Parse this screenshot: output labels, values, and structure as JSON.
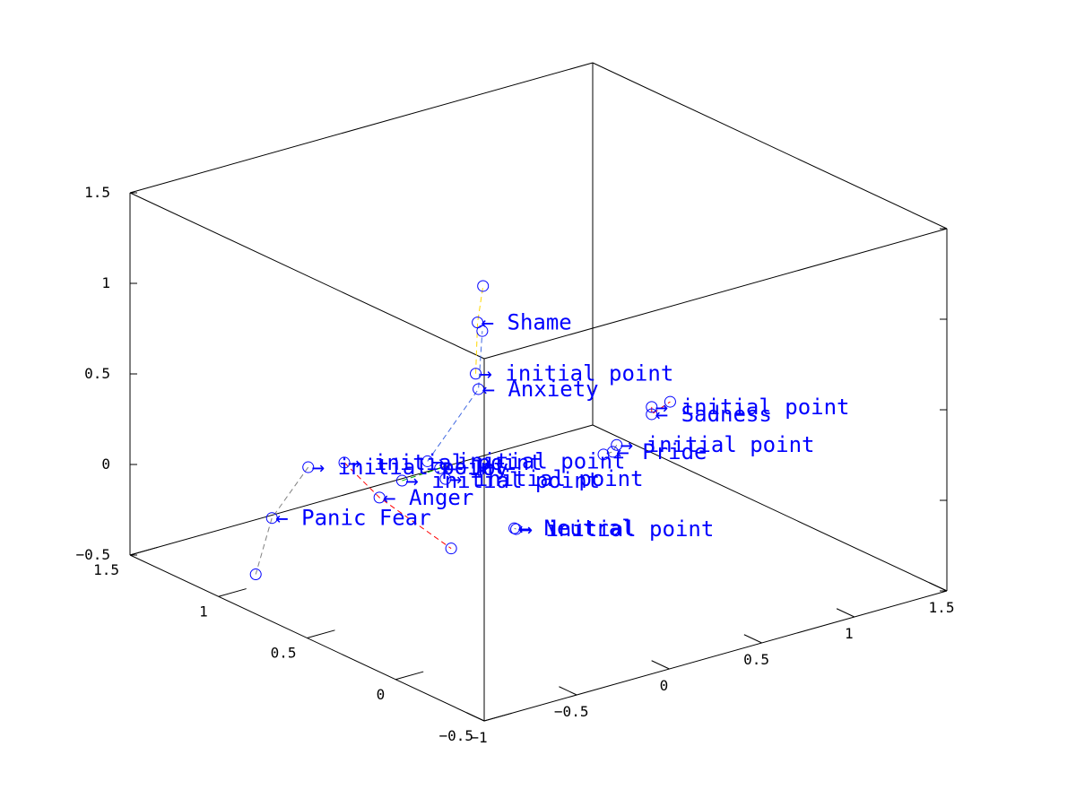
{
  "chart_data": {
    "type": "line3d",
    "xlim": [
      -0.5,
      1.5
    ],
    "ylim": [
      -1,
      1.5
    ],
    "zlim": [
      -0.5,
      1.5
    ],
    "x_ticks": [
      {
        "value": -0.5,
        "label": "−0.5"
      },
      {
        "value": 0,
        "label": "0"
      },
      {
        "value": 0.5,
        "label": "0.5"
      },
      {
        "value": 1,
        "label": "1"
      },
      {
        "value": 1.5,
        "label": "1.5"
      }
    ],
    "y_ticks": [
      {
        "value": -1,
        "label": "−1"
      },
      {
        "value": -0.5,
        "label": "−0.5"
      },
      {
        "value": 0,
        "label": "0"
      },
      {
        "value": 0.5,
        "label": "0.5"
      },
      {
        "value": 1,
        "label": "1"
      },
      {
        "value": 1.5,
        "label": "1.5"
      }
    ],
    "z_ticks": [
      {
        "value": -0.5,
        "label": "−0.5"
      },
      {
        "value": 0,
        "label": "0"
      },
      {
        "value": 0.5,
        "label": "0.5"
      },
      {
        "value": 1,
        "label": "1"
      },
      {
        "value": 1.5,
        "label": "1.5"
      }
    ],
    "series": [
      {
        "color": "#ffd700",
        "points": [
          [
            0.06,
            -0.51,
            1.02
          ],
          [
            0.06,
            -0.5,
            1.3
          ],
          [
            0.05,
            -0.48,
            1.5
          ]
        ],
        "labels": [
          {
            "point": 0,
            "text": "→ initial point"
          },
          {
            "point": 1,
            "text": "← Shame"
          }
        ]
      },
      {
        "color": "#4169e1",
        "points": [
          [
            0.28,
            -0.56,
            0.45
          ],
          [
            0.17,
            -0.39,
            0.85
          ],
          [
            0.19,
            -0.35,
            1.15
          ]
        ],
        "labels": [
          {
            "point": 0,
            "text": "→ initial point"
          },
          {
            "point": 1,
            "text": "← Anxiety"
          }
        ]
      },
      {
        "color": "#ff0000",
        "points": [
          [
            0.31,
            0.68,
            0.38
          ],
          [
            0.31,
            0.68,
            0.34
          ],
          [
            0.31,
            0.78,
            0.38
          ]
        ],
        "labels": [
          {
            "point": 0,
            "text": "→ initial point"
          },
          {
            "point": 1,
            "text": "← Sadness"
          }
        ]
      },
      {
        "color": "#808080",
        "points": [
          [
            0.33,
            0.51,
            0.21
          ],
          [
            0.3,
            0.46,
            0.2
          ],
          [
            0.3,
            0.41,
            0.2
          ]
        ],
        "labels": [
          {
            "point": 0,
            "text": "→ initial point"
          },
          {
            "point": 1,
            "text": "← Pride"
          }
        ]
      },
      {
        "color": "#ff0000",
        "points": [
          [
            0.76,
            -0.55,
            0.22
          ],
          [
            0.75,
            -0.37,
            -0.02
          ],
          [
            0.46,
            -0.26,
            -0.2
          ]
        ],
        "labels": [
          {
            "point": 0,
            "text": "→ initial point"
          },
          {
            "point": 1,
            "text": "← Anger"
          }
        ]
      },
      {
        "color": "#808080",
        "points": [
          [
            0.87,
            -0.64,
            0.17
          ],
          [
            0.96,
            -0.75,
            -0.12
          ],
          [
            1.02,
            -0.78,
            -0.45
          ]
        ],
        "labels": [
          {
            "point": 0,
            "text": "→ initial point"
          },
          {
            "point": 1,
            "text": "← Panic Fear"
          }
        ]
      },
      {
        "color": "#00aa00",
        "points": [
          [
            0.57,
            -0.42,
            0.17
          ],
          [
            0.46,
            -0.32,
            0.26
          ]
        ],
        "labels": [
          {
            "point": 0,
            "text": "→ initial point"
          },
          {
            "point": 1,
            "text": "← Joy"
          }
        ]
      },
      {
        "color": "#808080",
        "points": [
          [
            0.25,
            -0.11,
            -0.04
          ],
          [
            0.26,
            -0.11,
            -0.04
          ]
        ],
        "labels": [
          {
            "point": 0,
            "text": "→ initial point"
          },
          {
            "point": 1,
            "text": "← Neutral"
          }
        ]
      },
      {
        "color": "#808080",
        "points": [
          [
            0.45,
            -0.3,
            0.2
          ]
        ],
        "labels": [
          {
            "point": 0,
            "text": "→ initial point"
          }
        ]
      }
    ]
  }
}
